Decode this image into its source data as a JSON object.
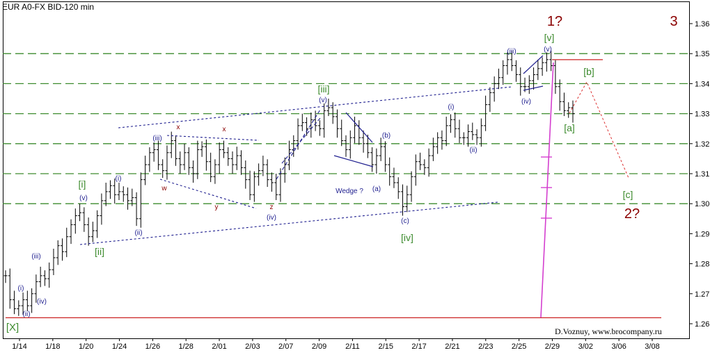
{
  "header": {
    "title": "EUR A0-FX BID-120 min"
  },
  "credit": "D.Voznuy,  www.brocompany.ru",
  "colors": {
    "green": "#3d8b2e",
    "navy": "#1f1f8f",
    "red": "#8b0000",
    "magenta": "#d43fcf",
    "bar": "#000000"
  },
  "chart_data": {
    "type": "ohlc",
    "ylim": [
      1.258,
      1.368
    ],
    "grid": false,
    "y_ticks": [
      "1.26",
      "1.27",
      "1.28",
      "1.29",
      "1.30",
      "1.31",
      "1.32",
      "1.33",
      "1.34",
      "1.35",
      "1.36"
    ],
    "x_ticks": [
      "1/14",
      "1/18",
      "1/20",
      "1/24",
      "1/26",
      "1/28",
      "2/01",
      "2/03",
      "2/07",
      "2/09",
      "2/11",
      "2/15",
      "2/17",
      "2/21",
      "2/23",
      "2/25",
      "2/29",
      "3/02",
      "3/06",
      "3/08"
    ],
    "close": [
      1.276,
      1.268,
      1.265,
      1.266,
      1.268,
      1.266,
      1.27,
      1.274,
      1.276,
      1.275,
      1.278,
      1.282,
      1.286,
      1.284,
      1.289,
      1.293,
      1.296,
      1.297,
      1.293,
      1.289,
      1.291,
      1.296,
      1.301,
      1.304,
      1.306,
      1.303,
      1.304,
      1.303,
      1.301,
      1.302,
      1.295,
      1.308,
      1.313,
      1.317,
      1.318,
      1.313,
      1.311,
      1.317,
      1.321,
      1.315,
      1.313,
      1.317,
      1.312,
      1.31,
      1.318,
      1.319,
      1.314,
      1.309,
      1.313,
      1.318,
      1.317,
      1.315,
      1.313,
      1.316,
      1.312,
      1.308,
      1.303,
      1.309,
      1.311,
      1.313,
      1.308,
      1.307,
      1.303,
      1.31,
      1.313,
      1.318,
      1.321,
      1.326,
      1.327,
      1.325,
      1.328,
      1.326,
      1.325,
      1.331,
      1.332,
      1.329,
      1.325,
      1.321,
      1.318,
      1.322,
      1.326,
      1.322,
      1.32,
      1.317,
      1.313,
      1.316,
      1.319,
      1.313,
      1.309,
      1.307,
      1.304,
      1.299,
      1.303,
      1.309,
      1.314,
      1.313,
      1.312,
      1.316,
      1.319,
      1.322,
      1.321,
      1.326,
      1.328,
      1.325,
      1.322,
      1.322,
      1.324,
      1.323,
      1.322,
      1.326,
      1.333,
      1.337,
      1.34,
      1.342,
      1.346,
      1.348,
      1.346,
      1.343,
      1.339,
      1.339,
      1.341,
      1.343,
      1.345,
      1.347,
      1.348,
      1.346,
      1.339,
      1.334,
      1.331,
      1.332,
      1.33
    ],
    "y_min": 1.26,
    "y_max": 1.36,
    "support_lines": [
      1.3,
      1.31,
      1.32,
      1.33,
      1.34,
      1.35
    ],
    "red_lines": [
      1.262,
      1.348
    ],
    "wave_labels": [
      {
        "text": "[X]",
        "color": "green"
      },
      {
        "text": "(i)",
        "color": "navy"
      },
      {
        "text": "(ii)",
        "color": "navy"
      },
      {
        "text": "(iii)",
        "color": "navy"
      },
      {
        "text": "(iv)",
        "color": "navy"
      },
      {
        "text": "(v)",
        "color": "navy"
      },
      {
        "text": "[i]",
        "color": "green"
      },
      {
        "text": "[ii]",
        "color": "green"
      },
      {
        "text": "(i)",
        "color": "navy"
      },
      {
        "text": "(ii)",
        "color": "navy"
      },
      {
        "text": "(iii)",
        "color": "navy"
      },
      {
        "text": "w",
        "color": "red"
      },
      {
        "text": "x",
        "color": "red"
      },
      {
        "text": "y",
        "color": "red"
      },
      {
        "text": "x",
        "color": "red"
      },
      {
        "text": "z",
        "color": "red"
      },
      {
        "text": "(iv)",
        "color": "navy"
      },
      {
        "text": "[iii]",
        "color": "green"
      },
      {
        "text": "(v)",
        "color": "navy"
      },
      {
        "text": "(b)",
        "color": "navy"
      },
      {
        "text": "(a)",
        "color": "navy"
      },
      {
        "text": "Wedge ?",
        "color": "navy"
      },
      {
        "text": "(c)",
        "color": "navy"
      },
      {
        "text": "[iv]",
        "color": "green"
      },
      {
        "text": "(i)",
        "color": "navy"
      },
      {
        "text": "(ii)",
        "color": "navy"
      },
      {
        "text": "(iii)",
        "color": "navy"
      },
      {
        "text": "(iv)",
        "color": "navy"
      },
      {
        "text": "(v)",
        "color": "navy"
      },
      {
        "text": "[v]",
        "color": "green"
      },
      {
        "text": "1?",
        "color": "red"
      },
      {
        "text": "3",
        "color": "red"
      },
      {
        "text": "[a]",
        "color": "green"
      },
      {
        "text": "[b]",
        "color": "green"
      },
      {
        "text": "[c]",
        "color": "green"
      },
      {
        "text": "2?",
        "color": "red"
      }
    ]
  }
}
